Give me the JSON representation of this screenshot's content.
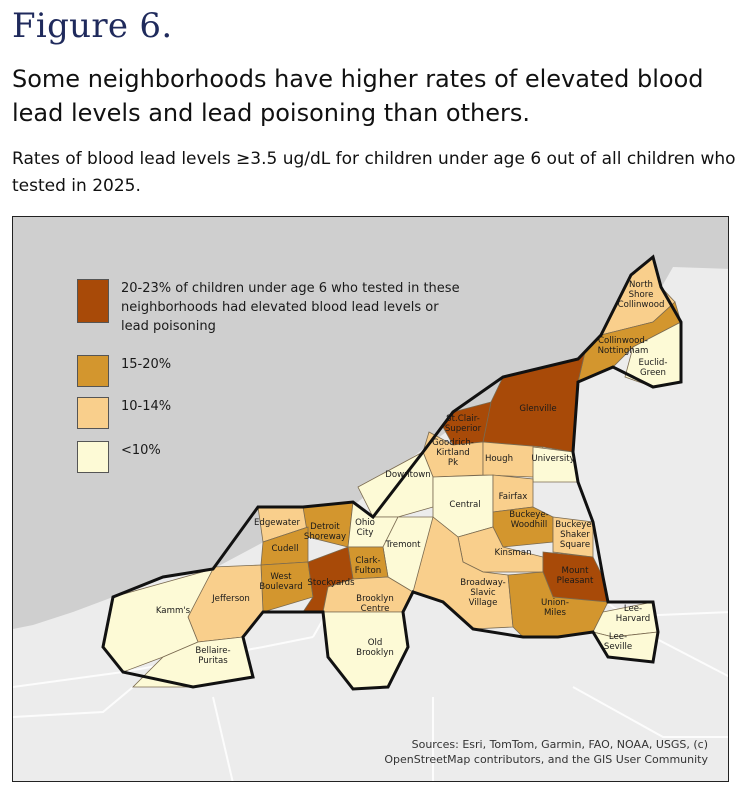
{
  "figure_label": "Figure 6.",
  "headline": "Some neighborhoods have higher rates of elevated blood lead levels and lead poisoning than others.",
  "subheadline": "Rates of blood lead levels ≥3.5 ug/dL for children under age 6 out of all children who tested in 2025.",
  "colors": {
    "high": "#a84a08",
    "mid_high": "#d3962e",
    "mid": "#f9cf8c",
    "low": "#fdfad6",
    "water": "#cfcfcf",
    "land": "#ececec",
    "outline": "#111111"
  },
  "legend": [
    {
      "label": "20-23% of children under age 6 who tested in these neighborhoods had elevated blood lead levels or lead poisoning",
      "color": "#a84a08"
    },
    {
      "label": "15-20%",
      "color": "#d3962e"
    },
    {
      "label": "10-14%",
      "color": "#f9cf8c"
    },
    {
      "label": "<10%",
      "color": "#fdfad6"
    }
  ],
  "neighborhoods": [
    {
      "name": "Glenville",
      "category": "20-23%"
    },
    {
      "name": "St.Clair-Superior",
      "category": "20-23%"
    },
    {
      "name": "Stockyards",
      "category": "20-23%"
    },
    {
      "name": "Mount Pleasant",
      "category": "20-23%"
    },
    {
      "name": "Collinwood-Nottingham",
      "category": "15-20%"
    },
    {
      "name": "Cudell",
      "category": "15-20%"
    },
    {
      "name": "Detroit Shoreway",
      "category": "15-20%"
    },
    {
      "name": "West Boulevard",
      "category": "15-20%"
    },
    {
      "name": "Clark-Fulton",
      "category": "15-20%"
    },
    {
      "name": "Buckeye-Woodhill",
      "category": "15-20%"
    },
    {
      "name": "Union-Miles",
      "category": "15-20%"
    },
    {
      "name": "North Shore Collinwood",
      "category": "10-14%"
    },
    {
      "name": "Goodrich-Kirtland Pk",
      "category": "10-14%"
    },
    {
      "name": "Hough",
      "category": "10-14%"
    },
    {
      "name": "Fairfax",
      "category": "10-14%"
    },
    {
      "name": "Kinsman",
      "category": "10-14%"
    },
    {
      "name": "Buckeye-Shaker Square",
      "category": "10-14%"
    },
    {
      "name": "Broadway-Slavic Village",
      "category": "10-14%"
    },
    {
      "name": "Jefferson",
      "category": "10-14%"
    },
    {
      "name": "Edgewater",
      "category": "10-14%"
    },
    {
      "name": "Brooklyn Centre",
      "category": "10-14%"
    },
    {
      "name": "Euclid-Green",
      "category": "<10%"
    },
    {
      "name": "University",
      "category": "<10%"
    },
    {
      "name": "Downtown",
      "category": "<10%"
    },
    {
      "name": "Central",
      "category": "<10%"
    },
    {
      "name": "Ohio City",
      "category": "<10%"
    },
    {
      "name": "Tremont",
      "category": "<10%"
    },
    {
      "name": "Kamm's",
      "category": "<10%"
    },
    {
      "name": "Bellaire-Puritas",
      "category": "<10%"
    },
    {
      "name": "Old Brooklyn",
      "category": "<10%"
    },
    {
      "name": "Lee-Harvard",
      "category": "<10%"
    },
    {
      "name": "Lee-Seville",
      "category": "<10%"
    }
  ],
  "sources": "Sources: Esri, TomTom, Garmin, FAO, NOAA, USGS, (c) OpenStreetMap contributors, and the GIS User Community"
}
